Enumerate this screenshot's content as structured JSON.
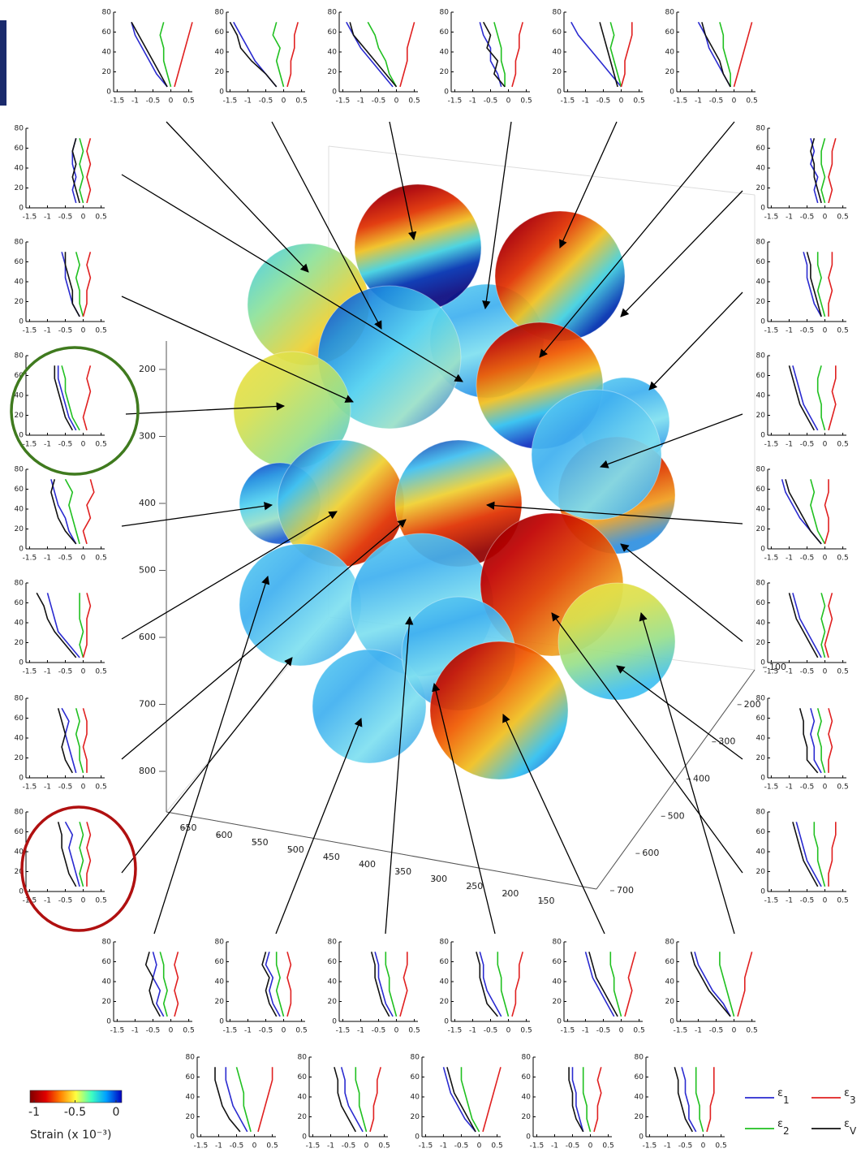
{
  "chart_data": {
    "type": "line",
    "xlim": [
      -1.6,
      0.6
    ],
    "ylim": [
      0,
      80
    ],
    "xticks": [
      -1.5,
      -1,
      -0.5,
      0,
      0.5
    ],
    "yticks": [
      0,
      20,
      40,
      60,
      80
    ],
    "depths": [
      5,
      18,
      31,
      44,
      57,
      70
    ],
    "series": [
      {
        "name": "ε1",
        "color": "#2a2ad0"
      },
      {
        "name": "ε2",
        "color": "#20c020"
      },
      {
        "name": "ε3",
        "color": "#e02020"
      },
      {
        "name": "εV",
        "color": "#111111"
      }
    ],
    "insets": [
      [
        [
          -0.1,
          -0.4,
          -0.6,
          -0.8,
          -1,
          -1.1
        ],
        [
          0,
          -0.1,
          -0.2,
          -0.2,
          -0.3,
          -0.2
        ],
        [
          0.1,
          0.2,
          0.3,
          0.4,
          0.5,
          0.6
        ],
        [
          -0.1,
          -0.3,
          -0.5,
          -0.7,
          -0.9,
          -1.1
        ]
      ],
      [
        [
          -0.2,
          -0.5,
          -0.8,
          -1,
          -1.2,
          -1.4
        ],
        [
          0,
          -0.1,
          -0.2,
          -0.1,
          -0.3,
          -0.2
        ],
        [
          0.1,
          0.2,
          0.2,
          0.3,
          0.3,
          0.4
        ],
        [
          -0.2,
          -0.5,
          -0.9,
          -1.2,
          -1.3,
          -1.5
        ]
      ],
      [
        [
          -0.1,
          -0.4,
          -0.7,
          -1,
          -1.2,
          -1.4
        ],
        [
          0,
          -0.2,
          -0.3,
          -0.5,
          -0.6,
          -0.8
        ],
        [
          0.1,
          0.2,
          0.3,
          0.3,
          0.4,
          0.5
        ],
        [
          0,
          -0.3,
          -0.6,
          -0.9,
          -1.2,
          -1.3
        ]
      ],
      [
        [
          -0.2,
          -0.3,
          -0.5,
          -0.5,
          -0.7,
          -0.8
        ],
        [
          -0.1,
          -0.1,
          -0.2,
          -0.2,
          -0.3,
          -0.4
        ],
        [
          0.1,
          0.2,
          0.2,
          0.3,
          0.3,
          0.4
        ],
        [
          -0.1,
          -0.4,
          -0.3,
          -0.6,
          -0.5,
          -0.7
        ]
      ],
      [
        [
          0,
          -0.3,
          -0.6,
          -0.9,
          -1.2,
          -1.4
        ],
        [
          0,
          -0.1,
          -0.2,
          -0.3,
          -0.2,
          -0.3
        ],
        [
          0,
          0.1,
          0.1,
          0.2,
          0.3,
          0.3
        ],
        [
          -0.1,
          -0.2,
          -0.3,
          -0.4,
          -0.5,
          -0.6
        ]
      ],
      [
        [
          -0.1,
          -0.3,
          -0.5,
          -0.7,
          -0.8,
          -1
        ],
        [
          -0.1,
          -0.1,
          -0.2,
          -0.3,
          -0.3,
          -0.4
        ],
        [
          0,
          0.1,
          0.2,
          0.3,
          0.4,
          0.5
        ],
        [
          -0.1,
          -0.3,
          -0.4,
          -0.6,
          -0.8,
          -0.9
        ]
      ],
      [
        [
          -0.2,
          -0.3,
          -0.2,
          -0.3,
          -0.3,
          -0.2
        ],
        [
          0,
          -0.1,
          0,
          -0.1,
          0,
          -0.1
        ],
        [
          0.1,
          0.2,
          0.1,
          0.2,
          0.1,
          0.2
        ],
        [
          -0.1,
          -0.2,
          -0.3,
          -0.2,
          -0.3,
          -0.2
        ]
      ],
      [
        [
          -0.1,
          -0.3,
          -0.4,
          -0.5,
          -0.5,
          -0.6
        ],
        [
          0,
          -0.1,
          -0.1,
          -0.2,
          -0.1,
          -0.2
        ],
        [
          0,
          0.1,
          0.1,
          0.2,
          0.1,
          0.2
        ],
        [
          -0.1,
          -0.3,
          -0.3,
          -0.4,
          -0.5,
          -0.5
        ]
      ],
      [
        [
          -0.2,
          -0.4,
          -0.5,
          -0.6,
          -0.7,
          -0.7
        ],
        [
          -0.1,
          -0.3,
          -0.4,
          -0.5,
          -0.5,
          -0.6
        ],
        [
          0.1,
          0,
          0.1,
          0.2,
          0.1,
          0.2
        ],
        [
          -0.3,
          -0.5,
          -0.6,
          -0.7,
          -0.8,
          -0.8
        ]
      ],
      [
        [
          -0.2,
          -0.4,
          -0.5,
          -0.7,
          -0.8,
          -0.9
        ],
        [
          -0.1,
          -0.2,
          -0.3,
          -0.4,
          -0.3,
          -0.5
        ],
        [
          0.1,
          0,
          0.2,
          0.1,
          0.3,
          0.2
        ],
        [
          -0.2,
          -0.5,
          -0.7,
          -0.8,
          -0.9,
          -0.8
        ]
      ],
      [
        [
          -0.1,
          -0.4,
          -0.7,
          -0.8,
          -0.9,
          -1
        ],
        [
          0,
          -0.1,
          0,
          -0.1,
          -0.1,
          -0.1
        ],
        [
          0,
          0.1,
          0.1,
          0.1,
          0.2,
          0.1
        ],
        [
          -0.2,
          -0.5,
          -0.8,
          -1,
          -1.1,
          -1.3
        ]
      ],
      [
        [
          -0.2,
          -0.3,
          -0.4,
          -0.5,
          -0.4,
          -0.6
        ],
        [
          0,
          -0.1,
          -0.1,
          -0.2,
          -0.1,
          -0.2
        ],
        [
          0.1,
          0.1,
          0,
          0.1,
          0.1,
          0
        ],
        [
          -0.3,
          -0.5,
          -0.6,
          -0.5,
          -0.6,
          -0.7
        ]
      ],
      [
        [
          -0.1,
          -0.2,
          -0.3,
          -0.4,
          -0.3,
          -0.5
        ],
        [
          0,
          -0.1,
          0,
          -0.1,
          0,
          -0.1
        ],
        [
          0.1,
          0.1,
          0.2,
          0.1,
          0.2,
          0.1
        ],
        [
          -0.2,
          -0.4,
          -0.5,
          -0.6,
          -0.6,
          -0.7
        ]
      ],
      [
        [
          -0.2,
          -0.3,
          -0.2,
          -0.4,
          -0.3,
          -0.4
        ],
        [
          0,
          -0.1,
          0,
          -0.1,
          -0.1,
          0
        ],
        [
          0.1,
          0.2,
          0.1,
          0.2,
          0.2,
          0.3
        ],
        [
          -0.1,
          -0.2,
          -0.3,
          -0.3,
          -0.4,
          -0.3
        ]
      ],
      [
        [
          -0.1,
          -0.3,
          -0.4,
          -0.5,
          -0.5,
          -0.6
        ],
        [
          0,
          -0.1,
          -0.2,
          -0.1,
          -0.2,
          -0.2
        ],
        [
          0.1,
          0.1,
          0.2,
          0.1,
          0.2,
          0.2
        ],
        [
          -0.1,
          -0.2,
          -0.3,
          -0.4,
          -0.4,
          -0.5
        ]
      ],
      [
        [
          -0.2,
          -0.4,
          -0.6,
          -0.7,
          -0.8,
          -0.9
        ],
        [
          0,
          -0.1,
          -0.1,
          -0.2,
          -0.2,
          -0.1
        ],
        [
          0.1,
          0.2,
          0.3,
          0.2,
          0.3,
          0.3
        ],
        [
          -0.3,
          -0.5,
          -0.7,
          -0.8,
          -0.9,
          -1
        ]
      ],
      [
        [
          -0.1,
          -0.4,
          -0.7,
          -0.9,
          -1.1,
          -1.2
        ],
        [
          0,
          -0.2,
          -0.3,
          -0.4,
          -0.3,
          -0.4
        ],
        [
          0,
          0.1,
          0.1,
          0,
          0.1,
          0.1
        ],
        [
          -0.1,
          -0.4,
          -0.6,
          -0.8,
          -1,
          -1.1
        ]
      ],
      [
        [
          -0.1,
          -0.3,
          -0.5,
          -0.7,
          -0.8,
          -0.9
        ],
        [
          0,
          -0.1,
          0,
          -0.1,
          0,
          -0.1
        ],
        [
          0.1,
          0,
          0.1,
          0.2,
          0.1,
          0.2
        ],
        [
          -0.2,
          -0.4,
          -0.6,
          -0.8,
          -0.9,
          -1
        ]
      ],
      [
        [
          -0.1,
          -0.3,
          -0.3,
          -0.4,
          -0.3,
          -0.4
        ],
        [
          0,
          -0.1,
          -0.1,
          -0.2,
          -0.1,
          -0.2
        ],
        [
          0.1,
          0.1,
          0.2,
          0.1,
          0.2,
          0.1
        ],
        [
          -0.2,
          -0.5,
          -0.5,
          -0.6,
          -0.6,
          -0.7
        ]
      ],
      [
        [
          -0.1,
          -0.3,
          -0.5,
          -0.6,
          -0.7,
          -0.8
        ],
        [
          0,
          -0.1,
          -0.2,
          -0.2,
          -0.3,
          -0.3
        ],
        [
          0.1,
          0.1,
          0.2,
          0.2,
          0.3,
          0.3
        ],
        [
          -0.2,
          -0.4,
          -0.6,
          -0.7,
          -0.8,
          -0.9
        ]
      ],
      [
        [
          -0.2,
          -0.4,
          -0.3,
          -0.5,
          -0.4,
          -0.5
        ],
        [
          -0.1,
          -0.2,
          -0.1,
          -0.2,
          -0.2,
          -0.3
        ],
        [
          0.1,
          0.2,
          0.1,
          0.2,
          0.1,
          0.2
        ],
        [
          -0.3,
          -0.5,
          -0.6,
          -0.5,
          -0.7,
          -0.6
        ]
      ],
      [
        [
          -0.1,
          -0.3,
          -0.4,
          -0.3,
          -0.5,
          -0.4
        ],
        [
          0,
          -0.1,
          -0.2,
          -0.1,
          -0.2,
          -0.2
        ],
        [
          0.1,
          0.2,
          0.2,
          0.1,
          0.2,
          0.1
        ],
        [
          -0.2,
          -0.4,
          -0.5,
          -0.4,
          -0.6,
          -0.5
        ]
      ],
      [
        [
          -0.1,
          -0.3,
          -0.4,
          -0.5,
          -0.5,
          -0.6
        ],
        [
          0,
          -0.1,
          -0.2,
          -0.2,
          -0.3,
          -0.3
        ],
        [
          0.1,
          0.2,
          0.3,
          0.2,
          0.3,
          0.3
        ],
        [
          -0.2,
          -0.4,
          -0.5,
          -0.6,
          -0.6,
          -0.7
        ]
      ],
      [
        [
          -0.2,
          -0.4,
          -0.6,
          -0.7,
          -0.7,
          -0.8
        ],
        [
          0,
          -0.1,
          -0.2,
          -0.2,
          -0.3,
          -0.3
        ],
        [
          0.1,
          0.2,
          0.2,
          0.3,
          0.3,
          0.4
        ],
        [
          -0.3,
          -0.6,
          -0.7,
          -0.8,
          -0.8,
          -0.9
        ]
      ],
      [
        [
          -0.2,
          -0.4,
          -0.6,
          -0.8,
          -0.9,
          -1
        ],
        [
          0,
          -0.1,
          -0.2,
          -0.2,
          -0.3,
          -0.3
        ],
        [
          0.1,
          0.2,
          0.3,
          0.2,
          0.3,
          0.4
        ],
        [
          -0.1,
          -0.3,
          -0.5,
          -0.7,
          -0.8,
          -0.9
        ]
      ],
      [
        [
          -0.1,
          -0.3,
          -0.6,
          -0.8,
          -1,
          -1.1
        ],
        [
          0,
          -0.1,
          -0.2,
          -0.3,
          -0.4,
          -0.4
        ],
        [
          0.1,
          0.2,
          0.3,
          0.3,
          0.4,
          0.5
        ],
        [
          -0.1,
          -0.4,
          -0.7,
          -0.9,
          -1.1,
          -1.2
        ]
      ],
      [
        [
          -0.2,
          -0.4,
          -0.6,
          -0.7,
          -0.8,
          -0.8
        ],
        [
          -0.1,
          -0.2,
          -0.3,
          -0.3,
          -0.4,
          -0.5
        ],
        [
          0.1,
          0.2,
          0.3,
          0.4,
          0.5,
          0.5
        ],
        [
          -0.4,
          -0.7,
          -0.9,
          -1,
          -1.1,
          -1.1
        ]
      ],
      [
        [
          -0.1,
          -0.3,
          -0.5,
          -0.6,
          -0.6,
          -0.7
        ],
        [
          0,
          -0.1,
          -0.2,
          -0.2,
          -0.3,
          -0.3
        ],
        [
          0.1,
          0.2,
          0.2,
          0.3,
          0.3,
          0.4
        ],
        [
          -0.3,
          -0.5,
          -0.7,
          -0.8,
          -0.8,
          -0.9
        ]
      ],
      [
        [
          -0.1,
          -0.4,
          -0.6,
          -0.8,
          -0.9,
          -1
        ],
        [
          0,
          -0.2,
          -0.3,
          -0.4,
          -0.5,
          -0.5
        ],
        [
          0.1,
          0.2,
          0.3,
          0.4,
          0.5,
          0.6
        ],
        [
          -0.1,
          -0.3,
          -0.5,
          -0.7,
          -0.8,
          -0.9
        ]
      ],
      [
        [
          -0.2,
          -0.3,
          -0.4,
          -0.4,
          -0.5,
          -0.5
        ],
        [
          0,
          -0.1,
          -0.1,
          -0.2,
          -0.2,
          -0.2
        ],
        [
          0.1,
          0.2,
          0.2,
          0.3,
          0.2,
          0.3
        ],
        [
          -0.2,
          -0.4,
          -0.5,
          -0.5,
          -0.6,
          -0.6
        ]
      ],
      [
        [
          -0.2,
          -0.4,
          -0.4,
          -0.5,
          -0.5,
          -0.6
        ],
        [
          0,
          -0.1,
          -0.1,
          -0.2,
          -0.2,
          -0.2
        ],
        [
          0.1,
          0.2,
          0.2,
          0.3,
          0.3,
          0.3
        ],
        [
          -0.3,
          -0.5,
          -0.6,
          -0.7,
          -0.7,
          -0.8
        ]
      ]
    ],
    "axes3d": {
      "vertical_ticks": [
        200,
        300,
        400,
        500,
        600,
        700,
        800
      ],
      "depth_ticks": [
        650,
        600,
        550,
        500,
        450,
        400,
        350,
        300,
        250,
        200,
        150
      ],
      "side_ticks": [
        700,
        600,
        500,
        400,
        300,
        200,
        100
      ]
    },
    "colorbar": {
      "label": "Strain (x 10⁻³)",
      "clim": [
        -1.05,
        0.07
      ],
      "ticks": [
        -1,
        -0.5,
        0
      ]
    }
  }
}
